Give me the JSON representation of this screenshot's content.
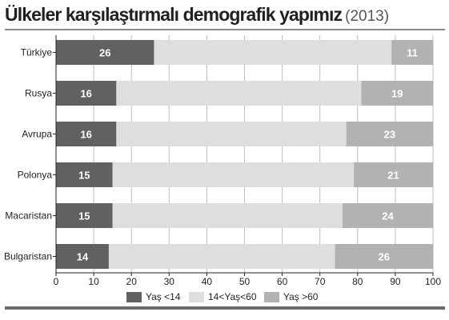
{
  "title": "Ülkeler karşılaştırmalı demografik yapımız",
  "title_year": "(2013)",
  "colors": {
    "young": "#616161",
    "middle": "#dedede",
    "old": "#b2b2b2",
    "grid": "#bdbdbd",
    "axis": "#231f20"
  },
  "chart_data": {
    "type": "bar",
    "orientation": "horizontal",
    "stacked": true,
    "title": "Ülkeler karşılaştırmalı demografik yapımız",
    "subtitle": "(2013)",
    "xlabel": "",
    "ylabel": "",
    "xlim": [
      0,
      100
    ],
    "x_ticks": [
      "0",
      "10",
      "20",
      "30",
      "40",
      "50",
      "60",
      "70",
      "80",
      "90",
      "100"
    ],
    "grid": "vertical",
    "legend_position": "bottom",
    "categories": [
      "Türkiye",
      "Rusya",
      "Avrupa",
      "Polonya",
      "Macaristan",
      "Bulgaristan"
    ],
    "series": [
      {
        "name": "Yaş <14",
        "color": "young",
        "values": [
          26,
          16,
          16,
          15,
          15,
          14
        ],
        "labels": [
          "26",
          "16",
          "16",
          "15",
          "15",
          "14"
        ]
      },
      {
        "name": "14<Yaş<60",
        "color": "middle",
        "values": [
          63,
          65,
          61,
          64,
          61,
          60
        ],
        "labels": []
      },
      {
        "name": "Yaş >60",
        "color": "old",
        "values": [
          11,
          19,
          23,
          21,
          24,
          26
        ],
        "labels": [
          "11",
          "19",
          "23",
          "21",
          "24",
          "26"
        ]
      }
    ]
  }
}
